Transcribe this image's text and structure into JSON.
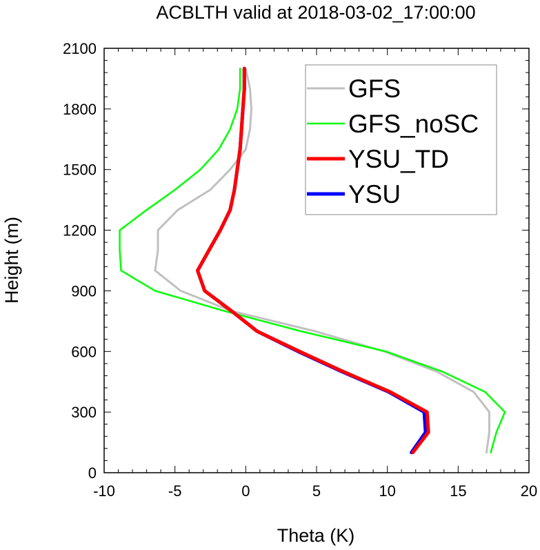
{
  "chart_data": {
    "type": "line",
    "title": "ACBLTH valid at 2018-03-02_17:00:00",
    "xlabel": "Theta (K)",
    "ylabel": "Height (m)",
    "xlim": [
      -10,
      20
    ],
    "ylim": [
      0,
      2100
    ],
    "xticks": [
      "-10",
      "-5",
      "0",
      "5",
      "10",
      "15",
      "20"
    ],
    "yticks": [
      "0",
      "300",
      "600",
      "900",
      "1200",
      "1500",
      "1800",
      "2100"
    ],
    "legend_position": "top-right",
    "grid": false,
    "series": [
      {
        "name": "GFS",
        "color": "#c0c0c0",
        "points": [
          [
            17.0,
            100
          ],
          [
            17.2,
            200
          ],
          [
            17.2,
            300
          ],
          [
            16.1,
            400
          ],
          [
            13.5,
            500
          ],
          [
            9.8,
            600
          ],
          [
            4.9,
            700
          ],
          [
            -1.0,
            800
          ],
          [
            -4.6,
            900
          ],
          [
            -6.4,
            1000
          ],
          [
            -6.2,
            1100
          ],
          [
            -6.2,
            1200
          ],
          [
            -4.8,
            1300
          ],
          [
            -2.5,
            1400
          ],
          [
            -1.1,
            1500
          ],
          [
            0.0,
            1600
          ],
          [
            0.3,
            1700
          ],
          [
            0.4,
            1800
          ],
          [
            0.3,
            1900
          ],
          [
            0.0,
            2000
          ]
        ]
      },
      {
        "name": "GFS_noSC",
        "color": "#00ff00",
        "points": [
          [
            17.3,
            100
          ],
          [
            17.7,
            200
          ],
          [
            18.3,
            300
          ],
          [
            16.9,
            400
          ],
          [
            13.9,
            500
          ],
          [
            9.9,
            600
          ],
          [
            3.9,
            700
          ],
          [
            -1.5,
            800
          ],
          [
            -6.4,
            900
          ],
          [
            -8.8,
            1000
          ],
          [
            -8.9,
            1100
          ],
          [
            -8.9,
            1200
          ],
          [
            -7.0,
            1300
          ],
          [
            -5.0,
            1400
          ],
          [
            -3.2,
            1500
          ],
          [
            -1.9,
            1600
          ],
          [
            -1.1,
            1700
          ],
          [
            -0.6,
            1800
          ],
          [
            -0.4,
            1900
          ],
          [
            -0.4,
            2000
          ]
        ]
      },
      {
        "name": "YSU_TD",
        "color": "#ff0000",
        "points": [
          [
            11.8,
            100
          ],
          [
            12.9,
            200
          ],
          [
            12.8,
            300
          ],
          [
            10.2,
            400
          ],
          [
            6.9,
            500
          ],
          [
            3.8,
            600
          ],
          [
            0.8,
            700
          ],
          [
            -1.0,
            800
          ],
          [
            -2.9,
            900
          ],
          [
            -3.4,
            1000
          ],
          [
            -2.6,
            1100
          ],
          [
            -1.8,
            1200
          ],
          [
            -1.1,
            1300
          ],
          [
            -0.8,
            1400
          ],
          [
            -0.6,
            1500
          ],
          [
            -0.4,
            1600
          ],
          [
            -0.3,
            1700
          ],
          [
            -0.2,
            1800
          ],
          [
            -0.1,
            1900
          ],
          [
            -0.1,
            2000
          ]
        ]
      },
      {
        "name": "YSU",
        "color": "#0000ff",
        "points": [
          [
            11.7,
            100
          ],
          [
            12.7,
            200
          ],
          [
            12.6,
            300
          ],
          [
            10.1,
            400
          ],
          [
            6.8,
            500
          ],
          [
            3.7,
            600
          ],
          [
            0.8,
            700
          ],
          [
            -1.0,
            800
          ],
          [
            -2.9,
            900
          ],
          [
            -3.4,
            1000
          ],
          [
            -2.6,
            1100
          ],
          [
            -1.8,
            1200
          ],
          [
            -1.1,
            1300
          ],
          [
            -0.8,
            1400
          ],
          [
            -0.6,
            1500
          ],
          [
            -0.4,
            1600
          ],
          [
            -0.3,
            1700
          ],
          [
            -0.2,
            1800
          ],
          [
            -0.1,
            1900
          ],
          [
            -0.1,
            2000
          ]
        ]
      }
    ]
  }
}
